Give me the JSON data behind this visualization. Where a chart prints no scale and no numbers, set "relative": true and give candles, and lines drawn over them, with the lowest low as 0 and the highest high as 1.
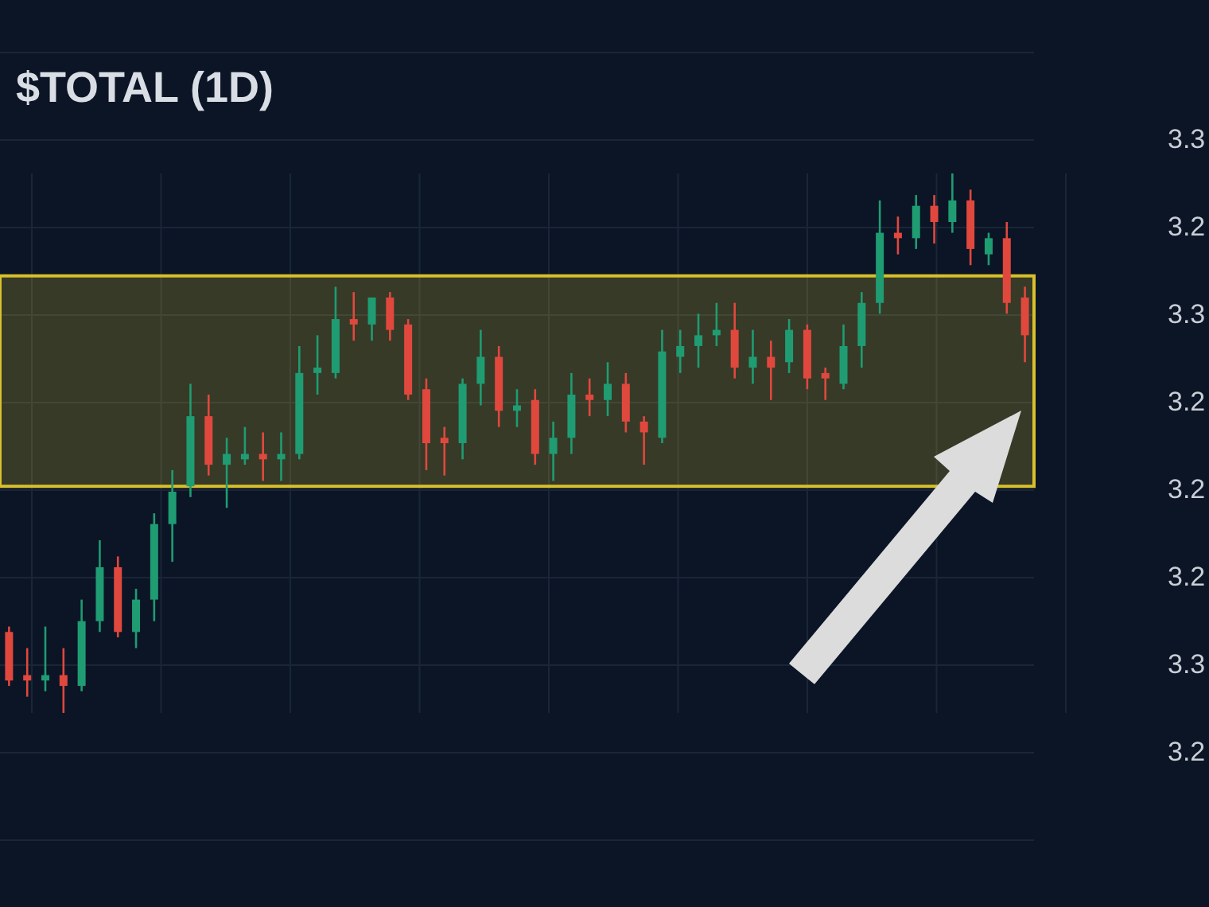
{
  "chart_data": {
    "type": "candlestick",
    "title": "$TOTAL (1D)",
    "relative": true,
    "grid": true,
    "tick_labels": false,
    "categories": [
      null,
      null,
      null,
      null,
      null,
      null,
      null,
      null,
      null,
      null,
      null,
      null,
      null,
      null,
      null,
      null,
      null,
      null,
      null,
      null,
      null,
      null,
      null,
      null,
      null,
      null,
      null,
      null,
      null,
      null,
      null,
      null,
      null,
      null,
      null,
      null,
      null,
      null,
      null,
      null,
      null,
      null,
      null,
      null,
      null,
      null,
      null,
      null,
      null,
      null,
      null,
      null,
      null,
      null,
      null,
      null,
      null
    ],
    "ohlc": [
      [
        0.15,
        0.16,
        0.05,
        0.06
      ],
      [
        0.07,
        0.12,
        0.03,
        0.06
      ],
      [
        0.06,
        0.16,
        0.04,
        0.07
      ],
      [
        0.07,
        0.12,
        0,
        0.05
      ],
      [
        0.05,
        0.21,
        0.04,
        0.17
      ],
      [
        0.17,
        0.32,
        0.15,
        0.27
      ],
      [
        0.27,
        0.29,
        0.14,
        0.15
      ],
      [
        0.15,
        0.23,
        0.12,
        0.21
      ],
      [
        0.21,
        0.37,
        0.17,
        0.35
      ],
      [
        0.35,
        0.45,
        0.28,
        0.41
      ],
      [
        0.42,
        0.61,
        0.4,
        0.55
      ],
      [
        0.55,
        0.59,
        0.44,
        0.46
      ],
      [
        0.46,
        0.51,
        0.38,
        0.48
      ],
      [
        0.47,
        0.53,
        0.46,
        0.48
      ],
      [
        0.48,
        0.52,
        0.43,
        0.47
      ],
      [
        0.47,
        0.52,
        0.43,
        0.48
      ],
      [
        0.48,
        0.68,
        0.47,
        0.63
      ],
      [
        0.63,
        0.7,
        0.59,
        0.64
      ],
      [
        0.63,
        0.79,
        0.62,
        0.73
      ],
      [
        0.73,
        0.78,
        0.69,
        0.72
      ],
      [
        0.72,
        0.77,
        0.69,
        0.77
      ],
      [
        0.77,
        0.78,
        0.69,
        0.71
      ],
      [
        0.72,
        0.73,
        0.58,
        0.59
      ],
      [
        0.6,
        0.62,
        0.45,
        0.5
      ],
      [
        0.51,
        0.53,
        0.44,
        0.5
      ],
      [
        0.5,
        0.62,
        0.47,
        0.61
      ],
      [
        0.61,
        0.71,
        0.57,
        0.66
      ],
      [
        0.66,
        0.68,
        0.53,
        0.56
      ],
      [
        0.56,
        0.6,
        0.53,
        0.57
      ],
      [
        0.58,
        0.6,
        0.46,
        0.48
      ],
      [
        0.48,
        0.54,
        0.43,
        0.51
      ],
      [
        0.51,
        0.63,
        0.48,
        0.59
      ],
      [
        0.59,
        0.62,
        0.55,
        0.58
      ],
      [
        0.58,
        0.65,
        0.55,
        0.61
      ],
      [
        0.61,
        0.63,
        0.52,
        0.54
      ],
      [
        0.54,
        0.55,
        0.46,
        0.52
      ],
      [
        0.51,
        0.71,
        0.5,
        0.67
      ],
      [
        0.66,
        0.71,
        0.63,
        0.68
      ],
      [
        0.68,
        0.74,
        0.64,
        0.7
      ],
      [
        0.7,
        0.76,
        0.68,
        0.71
      ],
      [
        0.71,
        0.76,
        0.62,
        0.64
      ],
      [
        0.64,
        0.71,
        0.61,
        0.66
      ],
      [
        0.66,
        0.69,
        0.58,
        0.64
      ],
      [
        0.65,
        0.73,
        0.63,
        0.71
      ],
      [
        0.71,
        0.72,
        0.6,
        0.62
      ],
      [
        0.63,
        0.64,
        0.58,
        0.62
      ],
      [
        0.61,
        0.72,
        0.6,
        0.68
      ],
      [
        0.68,
        0.78,
        0.64,
        0.76
      ],
      [
        0.76,
        0.95,
        0.74,
        0.89
      ],
      [
        0.89,
        0.92,
        0.85,
        0.88
      ],
      [
        0.88,
        0.96,
        0.86,
        0.94
      ],
      [
        0.94,
        0.96,
        0.87,
        0.91
      ],
      [
        0.91,
        1,
        0.89,
        0.95
      ],
      [
        0.95,
        0.97,
        0.83,
        0.86
      ],
      [
        0.85,
        0.89,
        0.83,
        0.88
      ],
      [
        0.88,
        0.91,
        0.74,
        0.76
      ],
      [
        0.77,
        0.79,
        0.65,
        0.7
      ]
    ],
    "colors": [
      "#e0483e",
      "#e0483e",
      "#1f9c72",
      "#e0483e",
      "#1f9c72",
      "#1f9c72",
      "#e0483e",
      "#1f9c72",
      "#1f9c72",
      "#1f9c72",
      "#1f9c72",
      "#e0483e",
      "#1f9c72",
      "#1f9c72",
      "#e0483e",
      "#1f9c72",
      "#1f9c72",
      "#1f9c72",
      "#1f9c72",
      "#e0483e",
      "#1f9c72",
      "#e0483e",
      "#e0483e",
      "#e0483e",
      "#e0483e",
      "#1f9c72",
      "#1f9c72",
      "#e0483e",
      "#1f9c72",
      "#e0483e",
      "#1f9c72",
      "#1f9c72",
      "#e0483e",
      "#1f9c72",
      "#e0483e",
      "#e0483e",
      "#1f9c72",
      "#1f9c72",
      "#1f9c72",
      "#1f9c72",
      "#e0483e",
      "#1f9c72",
      "#e0483e",
      "#1f9c72",
      "#e0483e",
      "#e0483e",
      "#1f9c72",
      "#1f9c72",
      "#1f9c72",
      "#e0483e",
      "#1f9c72",
      "#e0483e",
      "#1f9c72",
      "#e0483e",
      "#1f9c72",
      "#e0483e",
      "#e0483e"
    ],
    "bands": [
      {
        "axis": "y",
        "from": 0.42,
        "to": 0.81,
        "color": "#d8c02c"
      }
    ],
    "annotations": [
      "3.3",
      "3.2",
      "3.3",
      "3.2",
      "3.2",
      "3.2",
      "3.3",
      "3.2"
    ]
  }
}
